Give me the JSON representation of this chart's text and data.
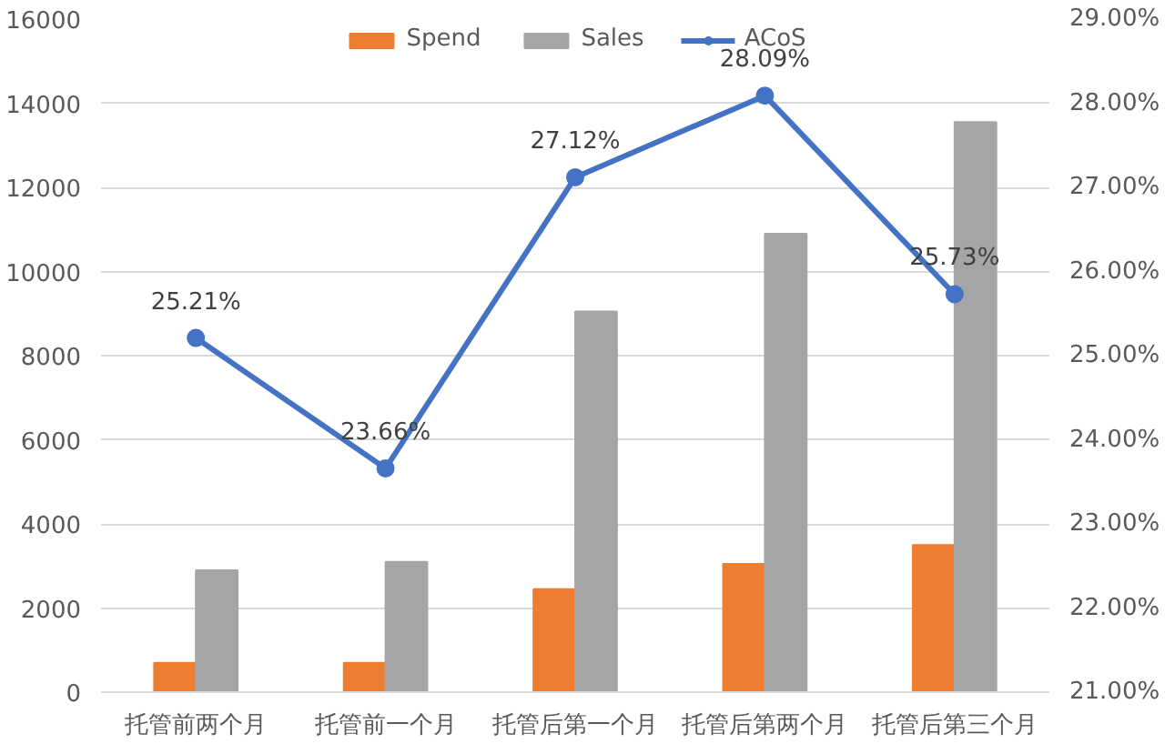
{
  "chart_data": {
    "type": "bar",
    "categories": [
      "托管前两个月",
      "托管前一个月",
      "托管后第一个月",
      "托管后第两个月",
      "托管后第三个月"
    ],
    "series": [
      {
        "name": "Spend",
        "color": "#ed7d31",
        "values": [
          700,
          700,
          2450,
          3050,
          3500
        ]
      },
      {
        "name": "Sales",
        "color": "#a5a5a5",
        "values": [
          2900,
          3100,
          9050,
          10900,
          13550
        ]
      },
      {
        "name": "ACoS",
        "type": "line",
        "axis": "y2",
        "color": "#4472c4",
        "values": [
          25.21,
          23.66,
          27.12,
          28.09,
          25.73
        ],
        "value_labels": [
          "25.21%",
          "23.66%",
          "27.12%",
          "28.09%",
          "25.73%"
        ]
      }
    ],
    "ylim": [
      0,
      16000
    ],
    "yticks": [
      0,
      2000,
      4000,
      6000,
      8000,
      10000,
      12000,
      14000,
      16000
    ],
    "y2lim": [
      21,
      29
    ],
    "y2ticks": [
      {
        "value": 21,
        "label": "21.00%"
      },
      {
        "value": 22,
        "label": "22.00%"
      },
      {
        "value": 23,
        "label": "23.00%"
      },
      {
        "value": 24,
        "label": "24.00%"
      },
      {
        "value": 25,
        "label": "25.00%"
      },
      {
        "value": 26,
        "label": "26.00%"
      },
      {
        "value": 27,
        "label": "27.00%"
      },
      {
        "value": 28,
        "label": "28.00%"
      },
      {
        "value": 29,
        "label": "29.00%"
      }
    ],
    "grid": "y",
    "legend": "top",
    "marker": "circle",
    "line_style": "solid"
  }
}
